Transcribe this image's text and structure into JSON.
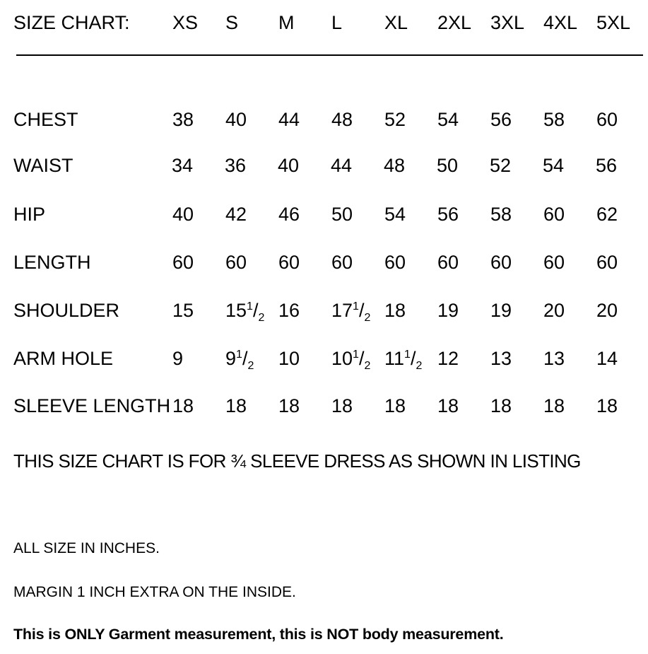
{
  "header": {
    "title": "SIZE CHART:",
    "sizes": [
      "XS",
      "S",
      "M",
      "L",
      "XL",
      "2XL",
      "3XL",
      "4XL",
      "5XL"
    ]
  },
  "rows": [
    {
      "label": "CHEST",
      "values": [
        "38",
        "40",
        "44",
        "48",
        "52",
        "54",
        "56",
        "58",
        "60"
      ]
    },
    {
      "label": "WAIST",
      "values": [
        "34",
        "36",
        "40",
        "44",
        "48",
        "50",
        "52",
        "54",
        "56"
      ]
    },
    {
      "label": "HIP",
      "values": [
        "40",
        "42",
        "46",
        "50",
        "54",
        "56",
        "58",
        "60",
        "62"
      ]
    },
    {
      "label": "LENGTH",
      "values": [
        "60",
        "60",
        "60",
        "60",
        "60",
        "60",
        "60",
        "60",
        "60"
      ]
    },
    {
      "label": "SHOULDER",
      "values": [
        "15",
        "15 1/2",
        "16",
        "17 1/2",
        "18",
        "19",
        "19",
        "20",
        "20"
      ]
    },
    {
      "label": "ARM HOLE",
      "values": [
        "9",
        "9 1/2",
        "10",
        "10 1/2",
        "11 1/2",
        "12",
        "13",
        "13",
        "14"
      ]
    },
    {
      "label": "SLEEVE LENGTH",
      "values": [
        "18",
        "18",
        "18",
        "18",
        "18",
        "18",
        "18",
        "18",
        "18"
      ]
    }
  ],
  "notes": {
    "sleeve_note": "THIS SIZE CHART IS FOR ¾ SLEEVE DRESS AS SHOWN IN LISTING",
    "units": "ALL SIZE IN INCHES.",
    "margin": "MARGIN 1 INCH EXTRA ON THE INSIDE.",
    "disclaimer": "This is ONLY Garment measurement, this is NOT body measurement."
  }
}
